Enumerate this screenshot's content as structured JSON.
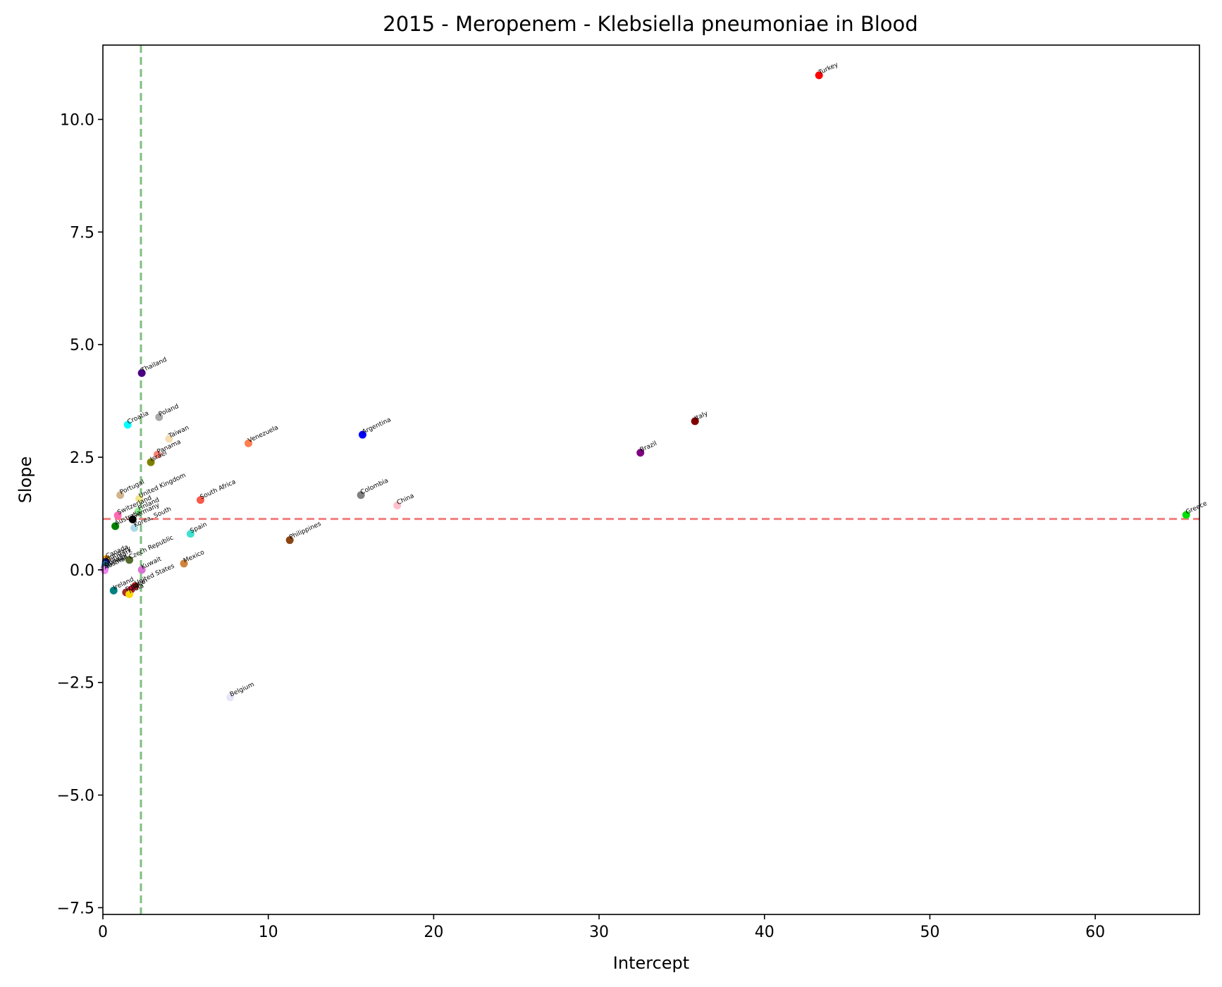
{
  "chart_data": {
    "type": "scatter",
    "title": "2015 - Meropenem - Klebsiella pneumoniae in Blood",
    "xlabel": "Intercept",
    "ylabel": "Slope",
    "xlim": [
      0,
      66.3
    ],
    "ylim": [
      -7.65,
      11.65
    ],
    "xticks": [
      0,
      10,
      20,
      30,
      40,
      50,
      60
    ],
    "yticks": [
      -7.5,
      -5.0,
      -2.5,
      0.0,
      2.5,
      5.0,
      7.5,
      10.0
    ],
    "xtick_labels": [
      "0",
      "10",
      "20",
      "30",
      "40",
      "50",
      "60"
    ],
    "ytick_labels": [
      "−7.5",
      "−5.0",
      "−2.5",
      "0.0",
      "2.5",
      "5.0",
      "7.5",
      "10.0"
    ],
    "grid": false,
    "reference_lines": [
      {
        "orientation": "vertical",
        "value": 2.3,
        "color": "#7fbf7f",
        "style": "dashed"
      },
      {
        "orientation": "horizontal",
        "value": 1.13,
        "color": "#f08080",
        "style": "dashed"
      }
    ],
    "points": [
      {
        "label": "Turkey",
        "x": 43.3,
        "y": 10.98,
        "color": "#ff0000"
      },
      {
        "label": "Greece",
        "x": 65.5,
        "y": 1.22,
        "color": "#00dd00"
      },
      {
        "label": "Italy",
        "x": 35.8,
        "y": 3.3,
        "color": "#800000"
      },
      {
        "label": "Brazil",
        "x": 32.5,
        "y": 2.6,
        "color": "#800080"
      },
      {
        "label": "Argentina",
        "x": 15.7,
        "y": 3.0,
        "color": "#0000ff"
      },
      {
        "label": "Colombia",
        "x": 15.6,
        "y": 1.66,
        "color": "#808080"
      },
      {
        "label": "China",
        "x": 17.8,
        "y": 1.43,
        "color": "#ffc0cb"
      },
      {
        "label": "Venezuela",
        "x": 8.8,
        "y": 2.81,
        "color": "#ff7f50"
      },
      {
        "label": "South Africa",
        "x": 5.9,
        "y": 1.55,
        "color": "#fa5a4a"
      },
      {
        "label": "Philippines",
        "x": 11.3,
        "y": 0.66,
        "color": "#8b4513"
      },
      {
        "label": "Spain",
        "x": 5.3,
        "y": 0.8,
        "color": "#40e0d0"
      },
      {
        "label": "Mexico",
        "x": 4.9,
        "y": 0.14,
        "color": "#cd853f"
      },
      {
        "label": "Belgium",
        "x": 7.7,
        "y": -2.83,
        "color": "#e6e6fa"
      },
      {
        "label": "Thailand",
        "x": 2.35,
        "y": 4.37,
        "color": "#4b0082"
      },
      {
        "label": "Poland",
        "x": 3.4,
        "y": 3.39,
        "color": "#a9a9a9"
      },
      {
        "label": "Croatia",
        "x": 1.5,
        "y": 3.22,
        "color": "#00ffff"
      },
      {
        "label": "Taiwan",
        "x": 4.0,
        "y": 2.91,
        "color": "#f5deb3"
      },
      {
        "label": "Panama",
        "x": 3.3,
        "y": 2.56,
        "color": "#fa8072"
      },
      {
        "label": "Israel",
        "x": 2.9,
        "y": 2.39,
        "color": "#808000"
      },
      {
        "label": "Portugal",
        "x": 1.05,
        "y": 1.66,
        "color": "#d2b48c"
      },
      {
        "label": "United Kingdom",
        "x": 2.2,
        "y": 1.58,
        "color": "#f0e68c"
      },
      {
        "label": "Finland",
        "x": 2.15,
        "y": 1.3,
        "color": "#90ee90"
      },
      {
        "label": "Switzerland",
        "x": 0.9,
        "y": 1.21,
        "color": "#ff69b4"
      },
      {
        "label": "Germany",
        "x": 1.8,
        "y": 1.12,
        "color": "#000000"
      },
      {
        "label": "Australia",
        "x": 0.75,
        "y": 0.97,
        "color": "#008000"
      },
      {
        "label": "Korea, South",
        "x": 1.9,
        "y": 0.93,
        "color": "#add8e6"
      },
      {
        "label": "Czech Republic",
        "x": 1.6,
        "y": 0.22,
        "color": "#556b2f"
      },
      {
        "label": "Kuwait",
        "x": 2.35,
        "y": 0.0,
        "color": "#da70d6"
      },
      {
        "label": "Canada",
        "x": 0.2,
        "y": 0.24,
        "color": "#ffa500"
      },
      {
        "label": "Hungary",
        "x": 0.18,
        "y": 0.18,
        "color": "#191970"
      },
      {
        "label": "Denmark",
        "x": 0.15,
        "y": 0.11,
        "color": "#1e90ff"
      },
      {
        "label": "Norway",
        "x": 0.12,
        "y": 0.05,
        "color": "#2e8b57"
      },
      {
        "label": "Sweden",
        "x": 0.1,
        "y": 0.02,
        "color": "#6a5acd"
      },
      {
        "label": "Austria",
        "x": 0.1,
        "y": -0.01,
        "color": "#ee82ee"
      },
      {
        "label": "Ireland",
        "x": 0.65,
        "y": -0.46,
        "color": "#008080"
      },
      {
        "label": "United States",
        "x": 1.95,
        "y": -0.36,
        "color": "#b22222"
      },
      {
        "label": "Japan",
        "x": 1.7,
        "y": -0.44,
        "color": "#dc143c"
      },
      {
        "label": "France",
        "x": 1.4,
        "y": -0.5,
        "color": "#a52a2a"
      },
      {
        "label": "India",
        "x": 1.6,
        "y": -0.54,
        "color": "#ffd700"
      }
    ]
  }
}
